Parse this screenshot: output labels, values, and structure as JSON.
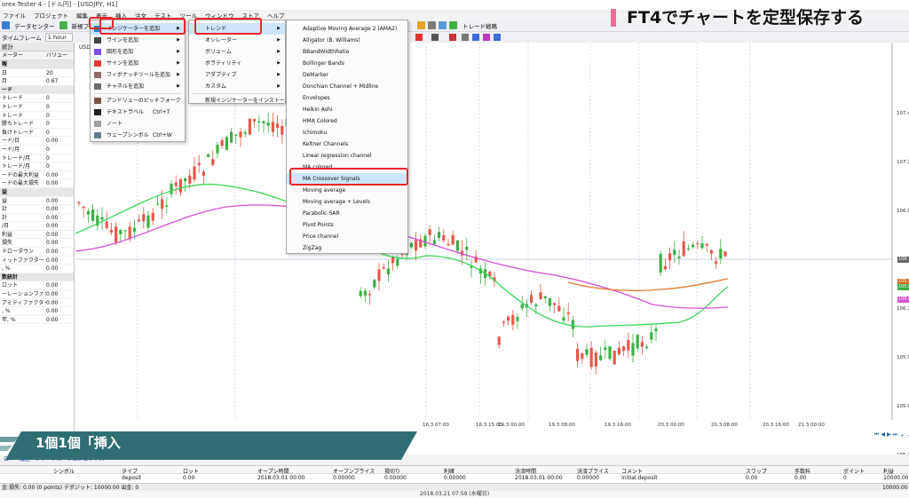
{
  "window": {
    "title": "orex Tester 4 - [ドル円] - [USDJPY, H1]"
  },
  "menubar": [
    "ファイル",
    "プロジェクト",
    "編集",
    "表示",
    "挿入",
    "注文",
    "テスト",
    "ツール",
    "ウィンドウ",
    "ストア",
    "ヘルプ"
  ],
  "toolbar": {
    "data_center": "データセンター",
    "new_project": "新規プロジェクト",
    "timeframe_label": "タイムフレーム",
    "timeframe_value": "1 hour",
    "trade_strategy": "トレード戦略"
  },
  "left_panel": {
    "header": "統計",
    "col_param": "メーター",
    "col_value": "バリュー",
    "rows": [
      {
        "label": "",
        "value": "",
        "group": true,
        "group_label": "報"
      },
      {
        "label": "日",
        "value": "20"
      },
      {
        "label": "月",
        "value": "0.67"
      },
      {
        "label": "",
        "value": "",
        "group": true,
        "group_label": "ード"
      },
      {
        "label": "トレード",
        "value": "0"
      },
      {
        "label": "トレード",
        "value": "0"
      },
      {
        "label": "トレード",
        "value": "0"
      },
      {
        "label": "勝ちトレード",
        "value": "0"
      },
      {
        "label": "負けトレード",
        "value": "0"
      },
      {
        "label": "ード/日",
        "value": "0.00"
      },
      {
        "label": "ード/月",
        "value": "0"
      },
      {
        "label": "トレード/月",
        "value": "0"
      },
      {
        "label": "トレード/月",
        "value": "0"
      },
      {
        "label": "ードの最大利益",
        "value": "0.00"
      },
      {
        "label": "ードの最大損失",
        "value": "0.00"
      },
      {
        "label": "",
        "value": "",
        "group": true,
        "group_label": "益"
      },
      {
        "label": "益",
        "value": "0.00"
      },
      {
        "label": "計",
        "value": "0.00"
      },
      {
        "label": "計",
        "value": "0.00"
      },
      {
        "label": "/月",
        "value": "0.00"
      },
      {
        "label": "利益",
        "value": "0.00"
      },
      {
        "label": "損失",
        "value": "0.00"
      },
      {
        "label": "ドローダウン",
        "value": "0.00"
      },
      {
        "label": "ィットファクター",
        "value": "0.00"
      },
      {
        "label": ", %",
        "value": "0.00"
      },
      {
        "label": "",
        "value": "",
        "group": true,
        "group_label": "数統計"
      },
      {
        "label": "ロット",
        "value": "0.00"
      },
      {
        "label": "ーレーションファクター",
        "value": "0.00"
      },
      {
        "label": "アミティファクター",
        "value": "0.00"
      },
      {
        "label": ", %",
        "value": "0.00"
      },
      {
        "label": "年, %",
        "value": "0.00"
      }
    ]
  },
  "chart": {
    "symbol": "USD",
    "x_labels": [
      "16.3 07:00",
      "16.3 15:00",
      "19.3 00:00",
      "19.3 08:00",
      "19.3 16:00",
      "20.3 00:00",
      "20.3 08:00",
      "20.3 16:00",
      "21.3 00:00"
    ],
    "y_labels": [
      "107.4",
      "107.1",
      "106.8",
      "106.5",
      "106.2",
      "105.9",
      "105.6",
      "105.3"
    ],
    "price_tags": [
      {
        "text": "106.1",
        "color": "#666666"
      },
      {
        "text": "105.9",
        "color": "#d2691e"
      },
      {
        "text": "105.8",
        "color": "#3cb043"
      },
      {
        "text": "105.6",
        "color": "#d64fd6"
      }
    ]
  },
  "menu_insert": {
    "items": [
      {
        "label": "インジケーターを追加",
        "arrow": true,
        "highlight": true
      },
      {
        "label": "ラインを追加",
        "arrow": true
      },
      {
        "label": "図形を追加",
        "arrow": true
      },
      {
        "label": "サインを追加",
        "arrow": true
      },
      {
        "label": "フィボナッチツールを追加",
        "arrow": true
      },
      {
        "label": "チャネルを追加",
        "arrow": true
      },
      {
        "label": "アンドリューのピッチフォーク"
      },
      {
        "label": "テキストラベル",
        "shortcut": "Ctrl+T"
      },
      {
        "label": "ノート"
      },
      {
        "label": "ウェーブシンボル",
        "shortcut": "Ctrl+W"
      }
    ]
  },
  "menu_indicator": {
    "items": [
      {
        "label": "トレンド",
        "arrow": true,
        "highlight": true
      },
      {
        "label": "オシレーター",
        "arrow": true
      },
      {
        "label": "ボリューム",
        "arrow": true
      },
      {
        "label": "ボラティリティ",
        "arrow": true
      },
      {
        "label": "アダプティブ",
        "arrow": true
      },
      {
        "label": "カスタム",
        "arrow": true
      },
      {
        "label": "新規インジケーターをインストール"
      }
    ]
  },
  "menu_trend": {
    "items": [
      {
        "label": "Adaptive Moving Average 2 (AMA2)"
      },
      {
        "label": "Alligator (B. Williams)"
      },
      {
        "label": "BBandWidthRatio"
      },
      {
        "label": "Bollinger Bands"
      },
      {
        "label": "DeMarker"
      },
      {
        "label": "Donchian Channel + Midline"
      },
      {
        "label": "Envelopes"
      },
      {
        "label": "Heikin Ashi"
      },
      {
        "label": "HMA Colored"
      },
      {
        "label": "Ichimoku"
      },
      {
        "label": "Keltner Channels"
      },
      {
        "label": "Linear regression channel"
      },
      {
        "label": "MA colored"
      },
      {
        "label": "MA Crossover Signals",
        "highlight": true
      },
      {
        "label": "Moving average"
      },
      {
        "label": "Moving average + Levels"
      },
      {
        "label": "Parabolic-SAR"
      },
      {
        "label": "Pivot Points"
      },
      {
        "label": "Price channel"
      },
      {
        "label": "ZigZag"
      }
    ]
  },
  "overlay": {
    "title": "FT4でチャートを定型保存する",
    "banner": "1個1個「挿入"
  },
  "bottom_tabs": [
    "ロド",
    "履歴",
    "ジャーナル",
    "プロジェクトス"
  ],
  "table": {
    "headers": [
      "シンボル",
      "タイプ",
      "ロット",
      "オープン時間",
      "オープンプライス",
      "損切り",
      "利確",
      "決済時間",
      "決済プライス",
      "コメント",
      "スワップ",
      "手数料",
      "ポイント",
      "利益"
    ],
    "row": [
      "",
      "deposit",
      "0.00",
      "2018.03.01 00:00",
      "0.00000",
      "0.00000",
      "0.00000",
      "2018.03.01 00:00",
      "0.00000",
      "Initial deposit",
      "0.00",
      "0.00",
      "0",
      "10000.00"
    ]
  },
  "status": {
    "text": "金:損失: 0.00 (0 points) デポジット: 10000.00 出金: 0",
    "total": "10000.00"
  },
  "bottom_line": "2018.03.21 07:59 (水曜日)"
}
